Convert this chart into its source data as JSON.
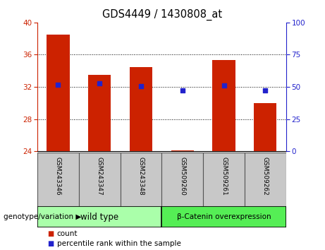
{
  "title": "GDS4449 / 1430808_at",
  "categories": [
    "GSM243346",
    "GSM243347",
    "GSM243348",
    "GSM509260",
    "GSM509261",
    "GSM509262"
  ],
  "bar_values": [
    38.5,
    33.5,
    34.5,
    24.1,
    35.3,
    30.0
  ],
  "bar_base": 24.0,
  "dot_values_left": [
    32.3,
    32.4,
    32.1,
    31.6,
    32.2,
    31.6
  ],
  "ylim_left": [
    24,
    40
  ],
  "ylim_right": [
    0,
    100
  ],
  "yticks_left": [
    24,
    28,
    32,
    36,
    40
  ],
  "yticks_right": [
    0,
    25,
    50,
    75,
    100
  ],
  "bar_color": "#cc2200",
  "dot_color": "#2222cc",
  "group1_label": "wild type",
  "group2_label": "β-Catenin overexpression",
  "group1_color": "#aaffaa",
  "group2_color": "#55ee55",
  "legend_count_label": "count",
  "legend_percentile_label": "percentile rank within the sample",
  "genotype_label": "genotype/variation",
  "left_axis_color": "#cc2200",
  "right_axis_color": "#2222cc",
  "label_bg_color": "#c8c8c8"
}
